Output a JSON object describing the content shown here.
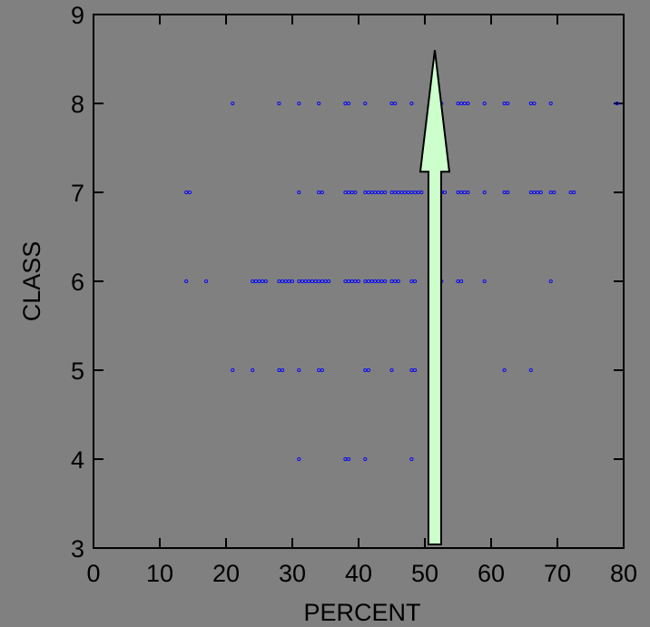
{
  "chart_data": {
    "type": "scatter",
    "xlabel": "PERCENT",
    "ylabel": "CLASS",
    "xlim": [
      0,
      80
    ],
    "ylim": [
      3,
      9
    ],
    "xticks": [
      "0",
      "10",
      "20",
      "30",
      "40",
      "50",
      "60",
      "70",
      "80"
    ],
    "yticks": [
      "3",
      "4",
      "5",
      "6",
      "7",
      "8",
      "9"
    ],
    "grid": false,
    "background_color": "#808080",
    "point_color": "#0000ff",
    "arrow": {
      "x": 51.5,
      "y_from": 3,
      "y_to": 8.6,
      "fill": "#ccffcc",
      "stroke": "#000000"
    },
    "series": [
      {
        "points": [
          [
            31,
            4
          ],
          [
            38,
            4
          ],
          [
            38.5,
            4
          ],
          [
            41,
            4
          ],
          [
            48,
            4
          ],
          [
            21,
            5
          ],
          [
            24,
            5
          ],
          [
            28,
            5
          ],
          [
            28.5,
            5
          ],
          [
            31,
            5
          ],
          [
            34,
            5
          ],
          [
            34.5,
            5
          ],
          [
            41,
            5
          ],
          [
            41.5,
            5
          ],
          [
            45,
            5
          ],
          [
            48,
            5
          ],
          [
            48.5,
            5
          ],
          [
            62,
            5
          ],
          [
            66,
            5
          ],
          [
            14,
            6
          ],
          [
            17,
            6
          ],
          [
            24,
            6
          ],
          [
            24.5,
            6
          ],
          [
            25,
            6
          ],
          [
            25.5,
            6
          ],
          [
            26,
            6
          ],
          [
            28,
            6
          ],
          [
            28.5,
            6
          ],
          [
            29,
            6
          ],
          [
            29.5,
            6
          ],
          [
            30,
            6
          ],
          [
            31,
            6
          ],
          [
            31.5,
            6
          ],
          [
            32,
            6
          ],
          [
            32.5,
            6
          ],
          [
            33,
            6
          ],
          [
            33.5,
            6
          ],
          [
            34,
            6
          ],
          [
            34.5,
            6
          ],
          [
            35,
            6
          ],
          [
            35.5,
            6
          ],
          [
            38,
            6
          ],
          [
            38.5,
            6
          ],
          [
            39,
            6
          ],
          [
            39.5,
            6
          ],
          [
            40,
            6
          ],
          [
            41,
            6
          ],
          [
            41.5,
            6
          ],
          [
            42,
            6
          ],
          [
            42.5,
            6
          ],
          [
            43,
            6
          ],
          [
            43.5,
            6
          ],
          [
            44,
            6
          ],
          [
            45,
            6
          ],
          [
            45.5,
            6
          ],
          [
            46,
            6
          ],
          [
            48,
            6
          ],
          [
            48.5,
            6
          ],
          [
            52,
            6
          ],
          [
            52.5,
            6
          ],
          [
            55,
            6
          ],
          [
            55.5,
            6
          ],
          [
            59,
            6
          ],
          [
            69,
            6
          ],
          [
            14,
            7
          ],
          [
            14.5,
            7
          ],
          [
            31,
            7
          ],
          [
            34,
            7
          ],
          [
            34.5,
            7
          ],
          [
            38,
            7
          ],
          [
            38.5,
            7
          ],
          [
            39,
            7
          ],
          [
            39.5,
            7
          ],
          [
            41,
            7
          ],
          [
            41.5,
            7
          ],
          [
            42,
            7
          ],
          [
            42.5,
            7
          ],
          [
            43,
            7
          ],
          [
            43.5,
            7
          ],
          [
            44,
            7
          ],
          [
            45,
            7
          ],
          [
            45.5,
            7
          ],
          [
            46,
            7
          ],
          [
            46.5,
            7
          ],
          [
            47,
            7
          ],
          [
            47.5,
            7
          ],
          [
            48,
            7
          ],
          [
            48.5,
            7
          ],
          [
            49,
            7
          ],
          [
            49.5,
            7
          ],
          [
            52,
            7
          ],
          [
            52.5,
            7
          ],
          [
            53,
            7
          ],
          [
            55,
            7
          ],
          [
            55.5,
            7
          ],
          [
            56,
            7
          ],
          [
            56.5,
            7
          ],
          [
            59,
            7
          ],
          [
            62,
            7
          ],
          [
            62.5,
            7
          ],
          [
            66,
            7
          ],
          [
            66.5,
            7
          ],
          [
            67,
            7
          ],
          [
            67.5,
            7
          ],
          [
            69,
            7
          ],
          [
            69.5,
            7
          ],
          [
            72,
            7
          ],
          [
            72.5,
            7
          ],
          [
            21,
            8
          ],
          [
            28,
            8
          ],
          [
            31,
            8
          ],
          [
            34,
            8
          ],
          [
            38,
            8
          ],
          [
            38.5,
            8
          ],
          [
            41,
            8
          ],
          [
            45,
            8
          ],
          [
            45.5,
            8
          ],
          [
            48,
            8
          ],
          [
            52.5,
            8
          ],
          [
            55,
            8
          ],
          [
            55.5,
            8
          ],
          [
            56,
            8
          ],
          [
            56.5,
            8
          ],
          [
            59,
            8
          ],
          [
            62,
            8
          ],
          [
            62.5,
            8
          ],
          [
            66,
            8
          ],
          [
            66.5,
            8
          ],
          [
            69,
            8
          ],
          [
            79,
            8
          ]
        ]
      }
    ]
  }
}
